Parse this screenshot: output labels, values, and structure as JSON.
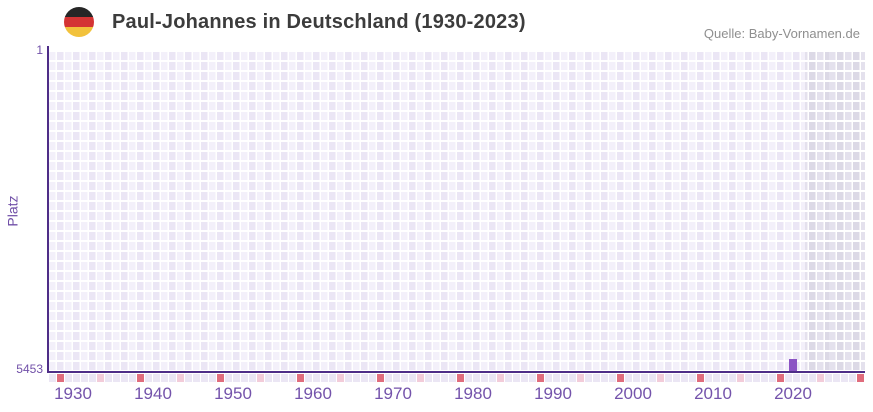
{
  "header": {
    "title": "Paul-Johannes in Deutschland (1930-2023)",
    "source": "Quelle: Baby-Vornamen.de",
    "flag_icon": "german-flag-roundel"
  },
  "chart_data": {
    "type": "scatter",
    "title": "Paul-Johannes in Deutschland (1930-2023)",
    "source": "Quelle: Baby-Vornamen.de",
    "xlabel": "",
    "ylabel": "Platz",
    "x_range": [
      1927,
      2029
    ],
    "x_ticks": [
      1930,
      1940,
      1950,
      1960,
      1970,
      1980,
      1990,
      2000,
      2010,
      2020
    ],
    "y_axis": {
      "top_tick": "1",
      "bottom_tick": "5453",
      "min": 1,
      "max": 5453,
      "inverted": true
    },
    "points": [
      {
        "year": 2020,
        "rank": 5250
      }
    ],
    "shaded_region": {
      "from_year": 2022,
      "to_year": 2029
    },
    "axis_strip_markers": {
      "red_years": [
        1928,
        1938,
        1948,
        1958,
        1968,
        1978,
        1988,
        1998,
        2008,
        2018,
        2028
      ],
      "pink_years": [
        1933,
        1943,
        1953,
        1963,
        1973,
        1983,
        1993,
        2003,
        2013,
        2023
      ]
    },
    "grid": "on",
    "legend": "none"
  },
  "colors": {
    "title_text": "#3c3c3c",
    "source_text": "#8f8f8f",
    "axis_line": "#4e2d87",
    "tick_text": "#7453ab",
    "cell_light": "#f3f0fa",
    "cell_dark": "#ebe6f5",
    "cell_shaded_light": "#e4e1ed",
    "cell_shaded_dark": "#dcd9e6",
    "strip_default": "#ebe6f4",
    "strip_red": "#e06c7c",
    "strip_pink": "#f3ccd9",
    "data_point": "#8b54c4",
    "flag_black": "#262626",
    "flag_red": "#d43434",
    "flag_gold": "#f2c23c"
  }
}
